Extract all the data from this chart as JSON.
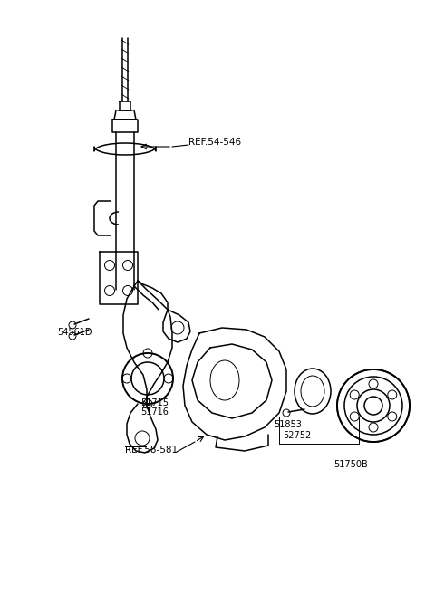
{
  "bg_color": "#ffffff",
  "line_color": "#000000",
  "lw": 1.1,
  "lw_thin": 0.7,
  "lw_thick": 1.4,
  "fig_width": 4.8,
  "fig_height": 6.56,
  "dpi": 100,
  "labels": {
    "ref_54_546": "REF.54-546",
    "ref_58_581": "REF.58-581",
    "l54561D": "54561D",
    "l51715": "51715",
    "l51716": "51716",
    "l51853": "51853",
    "l52752": "52752",
    "l51750B": "51750B"
  },
  "label_fontsize": 7.0,
  "ref_fontsize": 7.5
}
